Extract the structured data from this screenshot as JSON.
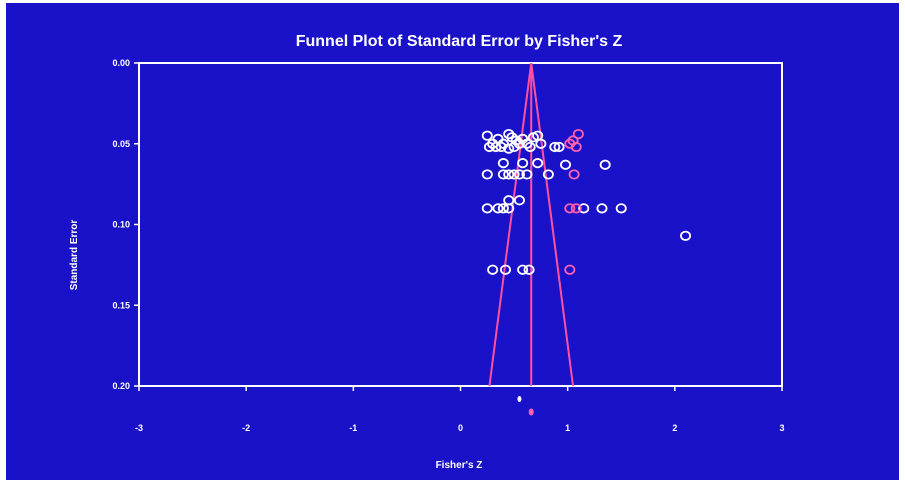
{
  "chart_data": {
    "type": "scatter",
    "title": "Funnel Plot of Standard Error by Fisher's Z",
    "xlabel": "Fisher's Z",
    "ylabel": "Standard Error",
    "xlim": [
      -3,
      3
    ],
    "ylim": [
      0.0,
      0.2
    ],
    "y_inverted": true,
    "grid": false,
    "x_ticks": [
      "-3",
      "-2",
      "-1",
      "0",
      "1",
      "2",
      "3"
    ],
    "y_ticks": [
      "0.00",
      "0.05",
      "0.10",
      "0.15",
      "0.20"
    ],
    "funnel": {
      "center": 0.66,
      "apex_se": 0.0,
      "base_se": 0.2,
      "base_left": 0.27,
      "base_right": 1.05
    },
    "summary": {
      "observed_x": 0.55,
      "adjusted_x": 0.66
    },
    "series": [
      {
        "marker": "open-circle-white",
        "points": [
          [
            0.25,
            0.045
          ],
          [
            0.3,
            0.05
          ],
          [
            0.35,
            0.047
          ],
          [
            0.4,
            0.05
          ],
          [
            0.45,
            0.044
          ],
          [
            0.48,
            0.046
          ],
          [
            0.52,
            0.048
          ],
          [
            0.58,
            0.047
          ],
          [
            0.62,
            0.05
          ],
          [
            0.68,
            0.046
          ],
          [
            0.72,
            0.045
          ],
          [
            0.88,
            0.052
          ],
          [
            0.92,
            0.052
          ],
          [
            0.27,
            0.052
          ],
          [
            0.33,
            0.052
          ],
          [
            0.38,
            0.052
          ],
          [
            0.45,
            0.053
          ],
          [
            0.5,
            0.052
          ],
          [
            0.55,
            0.05
          ],
          [
            0.65,
            0.052
          ],
          [
            0.75,
            0.05
          ],
          [
            0.4,
            0.062
          ],
          [
            0.58,
            0.062
          ],
          [
            0.72,
            0.062
          ],
          [
            0.98,
            0.063
          ],
          [
            1.35,
            0.063
          ],
          [
            0.25,
            0.069
          ],
          [
            0.4,
            0.069
          ],
          [
            0.45,
            0.069
          ],
          [
            0.5,
            0.069
          ],
          [
            0.55,
            0.069
          ],
          [
            0.62,
            0.069
          ],
          [
            0.82,
            0.069
          ],
          [
            0.45,
            0.085
          ],
          [
            0.55,
            0.085
          ],
          [
            0.25,
            0.09
          ],
          [
            0.35,
            0.09
          ],
          [
            0.4,
            0.09
          ],
          [
            0.45,
            0.09
          ],
          [
            1.15,
            0.09
          ],
          [
            1.32,
            0.09
          ],
          [
            1.5,
            0.09
          ],
          [
            2.1,
            0.107
          ],
          [
            0.3,
            0.128
          ],
          [
            0.42,
            0.128
          ],
          [
            0.58,
            0.128
          ],
          [
            0.64,
            0.128
          ]
        ]
      },
      {
        "marker": "open-circle-pink",
        "points": [
          [
            1.02,
            0.05
          ],
          [
            1.05,
            0.048
          ],
          [
            1.08,
            0.052
          ],
          [
            1.1,
            0.044
          ],
          [
            1.06,
            0.069
          ],
          [
            1.02,
            0.09
          ],
          [
            1.08,
            0.09
          ],
          [
            1.02,
            0.128
          ]
        ]
      }
    ]
  },
  "colors": {
    "background": "#1a12c8",
    "axis": "#ffffff",
    "funnel": "#ff4fa0",
    "point": "#ffffff",
    "imputed": "#ff5fb0",
    "text": "#ffffff"
  }
}
